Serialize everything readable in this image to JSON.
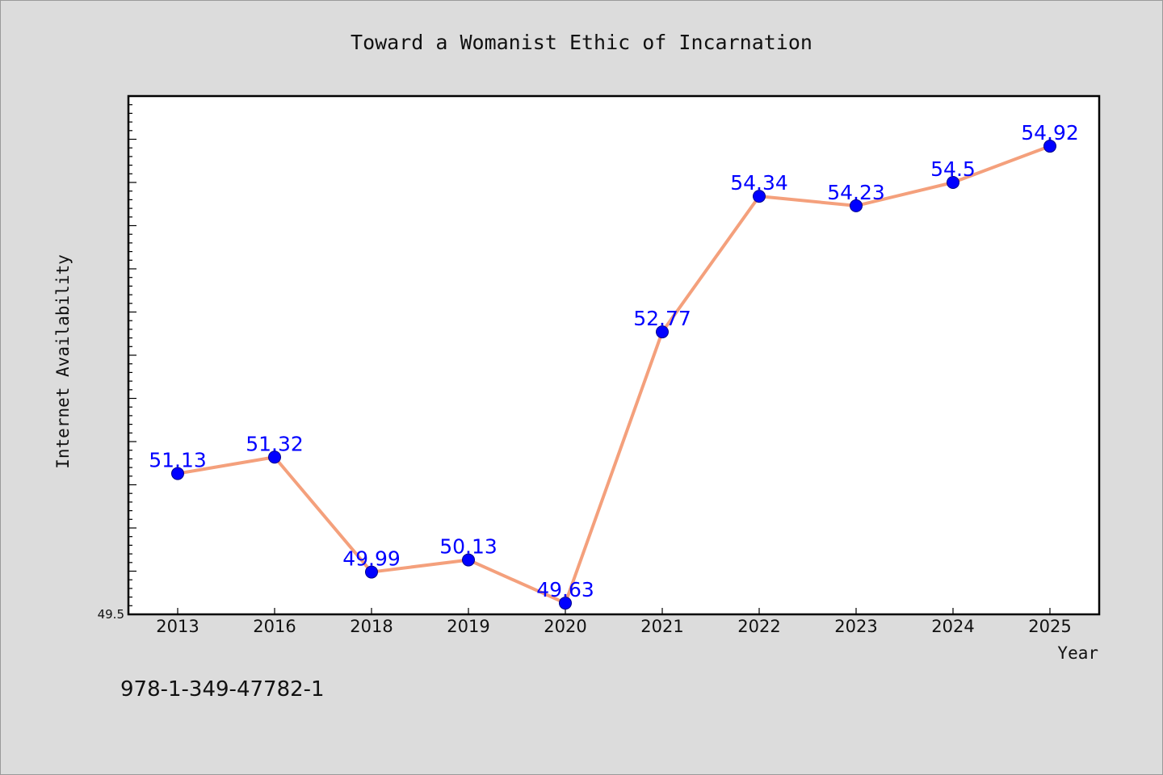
{
  "chart_data": {
    "type": "line",
    "title": "Toward a Womanist Ethic of Incarnation",
    "xlabel": "Year",
    "ylabel": "Internet Availability",
    "categories": [
      "2013",
      "2016",
      "2018",
      "2019",
      "2020",
      "2021",
      "2022",
      "2023",
      "2024",
      "2025"
    ],
    "values": [
      51.13,
      51.32,
      49.99,
      50.13,
      49.63,
      52.77,
      54.34,
      54.23,
      54.5,
      54.92
    ],
    "data_labels": [
      "51.13",
      "51.32",
      "49.99",
      "50.13",
      "49.63",
      "52.77",
      "54.34",
      "54.23",
      "54.5",
      "54.92"
    ],
    "ylim": [
      49.5,
      55.5
    ],
    "y_tick_labels": [
      "49.5"
    ],
    "grid": false,
    "legend": "none",
    "line_color": "#f4a07c",
    "marker_color": "#0000ff",
    "label_color": "#0000ff"
  },
  "footer": {
    "isbn": "978-1-349-47782-1"
  }
}
